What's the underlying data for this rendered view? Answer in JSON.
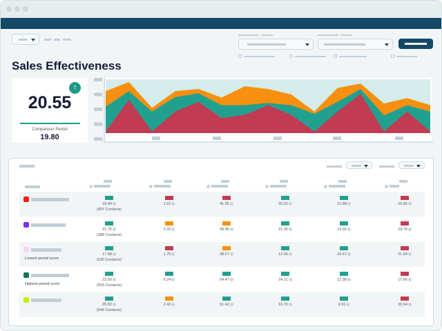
{
  "page": {
    "title": "Sales Effectiveness"
  },
  "kpi": {
    "value": "20.55",
    "trend_icon": "arrow-up-icon",
    "comparison_label": "Comparison Period",
    "comparison_value": "19.80"
  },
  "colors": {
    "header": "#124a66",
    "good": "#22a08f",
    "warning": "#f7900f",
    "bad": "#c13b52",
    "background_area": "#d4ecea"
  },
  "chart_data": {
    "type": "area",
    "stacked": false,
    "x": [
      1,
      2,
      3,
      4,
      5,
      6,
      7,
      8,
      9,
      10,
      11,
      12,
      13,
      14,
      15
    ],
    "ylim": [
      0,
      100
    ],
    "series": [
      {
        "color": "#f7900f",
        "values": [
          78,
          95,
          47,
          78,
          82,
          66,
          87,
          82,
          72,
          40,
          84,
          92,
          55,
          65,
          52
        ]
      },
      {
        "color": "#22a08f",
        "values": [
          49,
          78,
          40,
          67,
          74,
          52,
          52,
          56,
          52,
          36,
          58,
          82,
          33,
          52,
          40
        ]
      },
      {
        "color": "#c13b52",
        "values": [
          3,
          62,
          3,
          40,
          58,
          28,
          34,
          52,
          34,
          3,
          40,
          73,
          3,
          40,
          3
        ]
      }
    ]
  },
  "table": {
    "rows": [
      {
        "color": "#ff1a12",
        "note": "",
        "cells": [
          {
            "status": "good",
            "value": "18.49",
            "contacts": "(497 Contacts)"
          },
          {
            "status": "bad",
            "value": "1.01"
          },
          {
            "status": "bad",
            "value": "41.05"
          },
          {
            "status": "good",
            "value": "20.52"
          },
          {
            "status": "good",
            "value": "12.88"
          },
          {
            "status": "bad",
            "value": "15.85"
          }
        ]
      },
      {
        "color": "#7b2ff7",
        "note": "",
        "cells": [
          {
            "status": "good",
            "value": "21.75",
            "contacts": "(388 Contacts)"
          },
          {
            "status": "warning",
            "value": "2.32"
          },
          {
            "status": "warning",
            "value": "49.48"
          },
          {
            "status": "good",
            "value": "21.39"
          },
          {
            "status": "good",
            "value": "13.92"
          },
          {
            "status": "bad",
            "value": "24.76"
          }
        ]
      },
      {
        "color": "#fbd3f5",
        "note": "Lowest period score",
        "cells": [
          {
            "status": "good",
            "value": "17.68",
            "contacts": "(630 Contacts)"
          },
          {
            "status": "bad",
            "value": "1.75"
          },
          {
            "status": "warning",
            "value": "38.57"
          },
          {
            "status": "good",
            "value": "12.06"
          },
          {
            "status": "good",
            "value": "16.67"
          },
          {
            "status": "bad",
            "value": "21.64"
          }
        ]
      },
      {
        "color": "#127a4a",
        "note": "Highest period score",
        "cells": [
          {
            "status": "good",
            "value": "23.50",
            "contacts": "(593 Contacts)"
          },
          {
            "status": "good",
            "value": "6.24"
          },
          {
            "status": "good",
            "value": "54.47"
          },
          {
            "status": "good",
            "value": "24.11"
          },
          {
            "status": "good",
            "value": "12.98"
          },
          {
            "status": "bad",
            "value": "17.66"
          }
        ]
      },
      {
        "color": "#c8f000",
        "note": "",
        "cells": [
          {
            "status": "good",
            "value": "20.82",
            "contacts": "(949 Contacts)"
          },
          {
            "status": "warning",
            "value": "2.42"
          },
          {
            "status": "good",
            "value": "51.42"
          },
          {
            "status": "good",
            "value": "19.70"
          },
          {
            "status": "good",
            "value": "9.91"
          },
          {
            "status": "bad",
            "value": "20.64"
          }
        ]
      }
    ]
  }
}
